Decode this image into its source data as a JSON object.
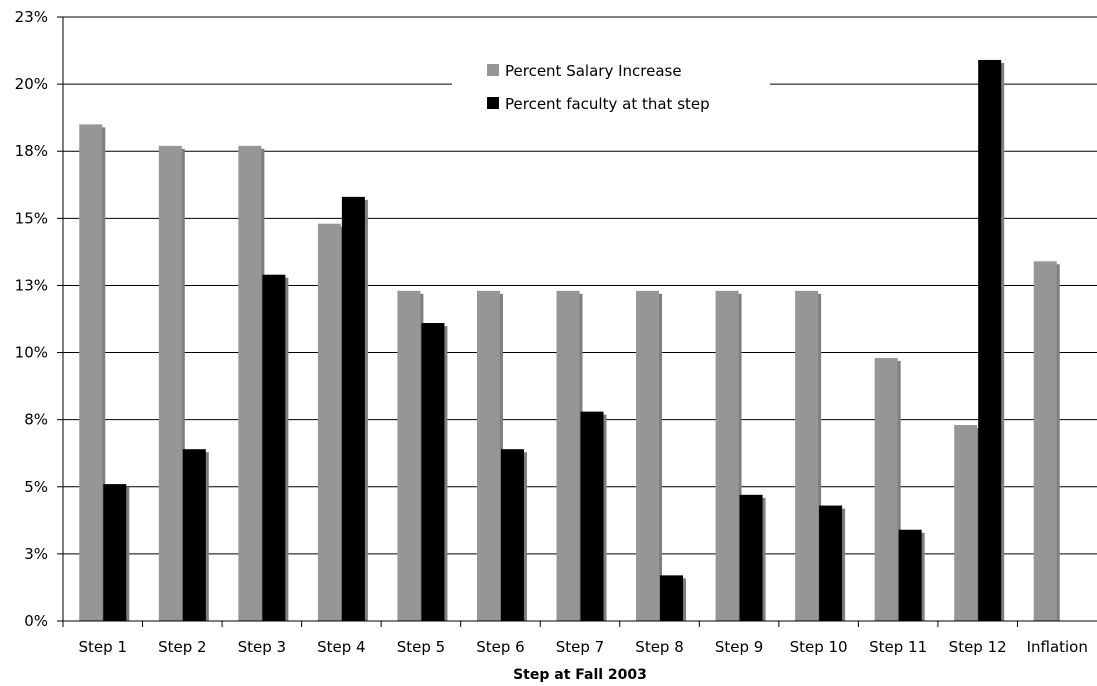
{
  "chart_data": {
    "type": "bar",
    "title": "",
    "xlabel": "Step at Fall 2003",
    "ylabel": "",
    "categories": [
      "Step 1",
      "Step 2",
      "Step 3",
      "Step 4",
      "Step 5",
      "Step 6",
      "Step 7",
      "Step 8",
      "Step 9",
      "Step 10",
      "Step 11",
      "Step 12",
      "Inflation"
    ],
    "series": [
      {
        "name": "Percent Salary Increase",
        "color": "#969696",
        "values": [
          18.5,
          17.7,
          17.7,
          14.8,
          12.3,
          12.3,
          12.3,
          12.3,
          12.3,
          12.3,
          9.8,
          7.3,
          13.4
        ]
      },
      {
        "name": "Percent faculty at that step",
        "color": "#000000",
        "values": [
          5.1,
          6.4,
          12.9,
          15.8,
          11.1,
          6.4,
          7.8,
          1.7,
          4.7,
          4.3,
          3.4,
          20.9,
          null
        ]
      }
    ],
    "ylim": [
      0,
      22.5
    ],
    "yticks": [
      {
        "value": 0,
        "label": "0%"
      },
      {
        "value": 2.5,
        "label": "3%"
      },
      {
        "value": 5,
        "label": "5%"
      },
      {
        "value": 7.5,
        "label": "8%"
      },
      {
        "value": 10,
        "label": "10%"
      },
      {
        "value": 12.5,
        "label": "13%"
      },
      {
        "value": 15,
        "label": "15%"
      },
      {
        "value": 17.5,
        "label": "18%"
      },
      {
        "value": 20,
        "label": "20%"
      },
      {
        "value": 22.5,
        "label": "23%"
      }
    ],
    "grid": true,
    "legend_position": "top-center"
  }
}
